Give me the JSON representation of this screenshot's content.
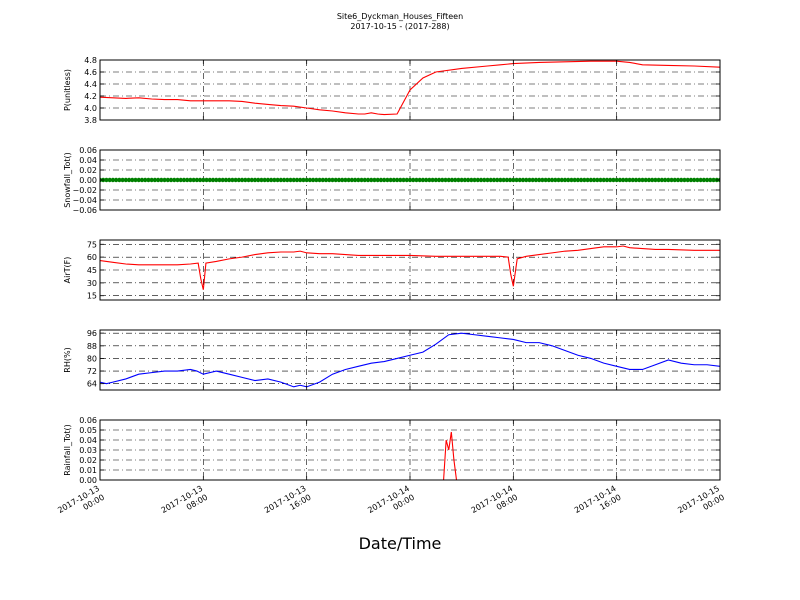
{
  "header": {
    "title": "Site6_Dyckman_Houses_Fifteen",
    "subtitle": "2017-10-15 - (2017-288)"
  },
  "xlabel": "Date/Time",
  "colors": {
    "red": "#ff0000",
    "green": "#008000",
    "blue": "#0000ff",
    "grid": "#000000"
  },
  "chart_data": [
    {
      "type": "line",
      "ylabel": "P(unitless)",
      "ylim": [
        3.8,
        4.8
      ],
      "yticks": [
        3.8,
        4.0,
        4.2,
        4.4,
        4.6,
        4.8
      ],
      "yticklabels": [
        "3.8",
        "4.0",
        "4.2",
        "4.4",
        "4.6",
        "4.8"
      ],
      "grid": true,
      "series": [
        {
          "color": "#ff0000",
          "x": [
            0,
            2,
            3,
            4,
            5,
            6,
            7,
            8,
            9,
            10,
            11,
            12,
            13,
            14,
            15,
            16,
            17,
            18,
            19,
            20,
            20.5,
            21,
            21.5,
            22,
            23,
            24,
            25,
            26,
            28,
            30,
            31,
            32,
            34,
            36,
            38,
            40,
            41,
            42,
            44,
            46,
            48
          ],
          "y": [
            4.18,
            4.16,
            4.17,
            4.15,
            4.14,
            4.14,
            4.12,
            4.12,
            4.12,
            4.12,
            4.11,
            4.08,
            4.06,
            4.04,
            4.03,
            4.0,
            3.97,
            3.95,
            3.92,
            3.9,
            3.9,
            3.92,
            3.9,
            3.89,
            3.9,
            4.3,
            4.5,
            4.6,
            4.66,
            4.7,
            4.72,
            4.74,
            4.76,
            4.77,
            4.78,
            4.78,
            4.76,
            4.72,
            4.71,
            4.7,
            4.68
          ]
        }
      ]
    },
    {
      "type": "scatter",
      "ylabel": "Snowfall_Tot()",
      "ylim": [
        -0.06,
        0.06
      ],
      "yticks": [
        -0.06,
        -0.04,
        -0.02,
        0.0,
        0.02,
        0.04,
        0.06
      ],
      "yticklabels": [
        "−0.06",
        "−0.04",
        "−0.02",
        "0.00",
        "0.02",
        "0.04",
        "0.06"
      ],
      "grid": true,
      "series": [
        {
          "color": "#008000",
          "x_start": 0,
          "x_end": 48,
          "x_step": 0.25,
          "constant_y": 0.0
        }
      ]
    },
    {
      "type": "line",
      "ylabel": "AirT(F)",
      "ylim": [
        10,
        80
      ],
      "yticks": [
        15,
        30,
        45,
        60,
        75
      ],
      "yticklabels": [
        "15",
        "30",
        "45",
        "60",
        "75"
      ],
      "grid": true,
      "series": [
        {
          "color": "#ff0000",
          "x": [
            0,
            1,
            2,
            3,
            4,
            5,
            6,
            7,
            7.6,
            7.8,
            8.0,
            8.2,
            9,
            10,
            11,
            12,
            13,
            14,
            15,
            15.5,
            16,
            17,
            18,
            19,
            20,
            22,
            24,
            26,
            28,
            31,
            31.6,
            31.8,
            32.0,
            32.3,
            33,
            34,
            35,
            36,
            37,
            38,
            39,
            40,
            40.5,
            41,
            42,
            43,
            44,
            46,
            48
          ],
          "y": [
            56,
            54,
            52,
            51,
            51,
            51,
            51,
            52,
            53,
            35,
            22,
            53,
            55,
            58,
            60,
            63,
            65,
            66,
            66,
            67,
            65,
            64,
            64,
            63,
            62,
            62,
            62,
            61,
            61,
            61,
            60,
            40,
            26,
            58,
            61,
            63,
            65,
            67,
            68,
            70,
            72,
            72,
            73,
            71,
            70,
            69,
            69,
            68,
            68
          ]
        }
      ]
    },
    {
      "type": "line",
      "ylabel": "RH(%)",
      "ylim": [
        60,
        98
      ],
      "yticks": [
        64,
        72,
        80,
        88,
        96
      ],
      "yticklabels": [
        "64",
        "72",
        "80",
        "88",
        "96"
      ],
      "grid": true,
      "series": [
        {
          "color": "#0000ff",
          "x": [
            0,
            0.5,
            1,
            2,
            3,
            4,
            5,
            6,
            7,
            7.5,
            8,
            9,
            10,
            11,
            12,
            13,
            14,
            15,
            15.5,
            16,
            17,
            18,
            19,
            20,
            21,
            22,
            23,
            24,
            25,
            26,
            27,
            28,
            29,
            30,
            31,
            32,
            33,
            34,
            35,
            36,
            37,
            38,
            39,
            40,
            41,
            42,
            43,
            44,
            45,
            46,
            47,
            48
          ],
          "y": [
            65,
            64,
            65,
            67,
            70,
            71,
            72,
            72,
            73,
            72,
            70,
            72,
            70,
            68,
            66,
            67,
            65,
            62,
            63,
            62,
            65,
            70,
            73,
            75,
            77,
            78,
            80,
            82,
            84,
            89,
            95,
            96,
            95,
            94,
            93,
            92,
            90,
            90,
            88,
            85,
            82,
            80,
            77,
            75,
            73,
            73,
            76,
            79,
            77,
            76,
            76,
            75
          ]
        }
      ]
    },
    {
      "type": "line",
      "ylabel": "Rainfall_Tot()",
      "ylim": [
        0.0,
        0.06
      ],
      "yticks": [
        0.0,
        0.01,
        0.02,
        0.03,
        0.04,
        0.05,
        0.06
      ],
      "yticklabels": [
        "0.00",
        "0.01",
        "0.02",
        "0.03",
        "0.04",
        "0.05",
        "0.06"
      ],
      "grid": true,
      "series": [
        {
          "color": "#ff0000",
          "x": [
            0,
            26.6,
            26.8,
            27.0,
            27.2,
            27.4,
            27.6,
            27.8,
            48
          ],
          "y": [
            0.0,
            0.0,
            0.04,
            0.03,
            0.048,
            0.02,
            0.0,
            0.0,
            0.0
          ]
        }
      ]
    }
  ],
  "xaxis": {
    "xlim": [
      0,
      48
    ],
    "ticks": [
      0,
      8,
      16,
      24,
      32,
      40,
      48
    ],
    "ticklabels": [
      [
        "2017-10-13",
        "00:00"
      ],
      [
        "2017-10-13",
        "08:00"
      ],
      [
        "2017-10-13",
        "16:00"
      ],
      [
        "2017-10-14",
        "00:00"
      ],
      [
        "2017-10-14",
        "08:00"
      ],
      [
        "2017-10-14",
        "16:00"
      ],
      [
        "2017-10-15",
        "00:00"
      ]
    ]
  }
}
